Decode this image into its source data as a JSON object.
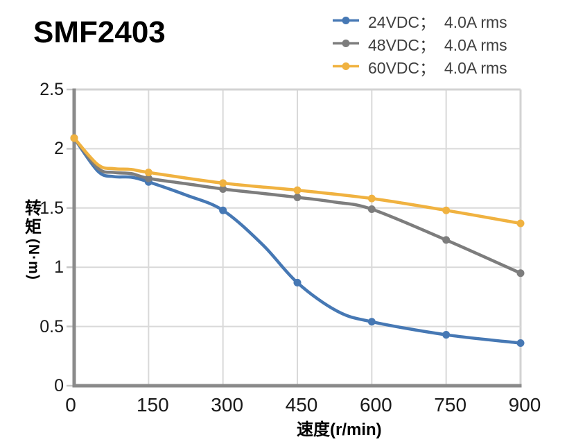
{
  "title": "SMF2403",
  "legend": {
    "position": "top-right",
    "items": [
      {
        "label": "24VDC；  4.0A rms",
        "color": "#4678B4"
      },
      {
        "label": "48VDC；  4.0A rms",
        "color": "#7D7D7D"
      },
      {
        "label": "60VDC；  4.0A rms",
        "color": "#F0B240"
      }
    ]
  },
  "axes": {
    "xlabel": "速度(r/min)",
    "ylabel": "转矩(N·m)",
    "ylabel_chars": [
      "转",
      "矩"
    ],
    "ylabel_unit": "(N·m)"
  },
  "chart_data": {
    "type": "line",
    "title": "SMF2403",
    "xlabel": "速度(r/min)",
    "ylabel": "转矩(N·m)",
    "xlim": [
      0,
      900
    ],
    "ylim": [
      0,
      2.5
    ],
    "xticks": [
      0,
      150,
      300,
      450,
      600,
      750,
      900
    ],
    "yticks": [
      0,
      0.5,
      1,
      1.5,
      2,
      2.5
    ],
    "grid": true,
    "legend_position": "top-right",
    "x": [
      0,
      150,
      300,
      450,
      600,
      750,
      900
    ],
    "series": [
      {
        "name": "24VDC；  4.0A rms",
        "id": "24vdc",
        "color": "#4678B4",
        "values": [
          2.09,
          1.72,
          1.48,
          0.87,
          0.54,
          0.43,
          0.36
        ],
        "shape_points": [
          [
            0,
            2.09
          ],
          [
            48,
            1.81
          ],
          [
            80,
            1.765
          ],
          [
            115,
            1.76
          ],
          [
            150,
            1.72
          ],
          [
            225,
            1.61
          ],
          [
            300,
            1.48
          ],
          [
            380,
            1.19
          ],
          [
            450,
            0.87
          ],
          [
            530,
            0.63
          ],
          [
            600,
            0.54
          ],
          [
            750,
            0.43
          ],
          [
            900,
            0.36
          ]
        ]
      },
      {
        "name": "48VDC；  4.0A rms",
        "id": "48vdc",
        "color": "#7D7D7D",
        "values": [
          2.09,
          1.75,
          1.66,
          1.59,
          1.49,
          1.23,
          0.95
        ],
        "shape_points": [
          [
            0,
            2.09
          ],
          [
            48,
            1.835
          ],
          [
            80,
            1.8
          ],
          [
            115,
            1.79
          ],
          [
            150,
            1.75
          ],
          [
            225,
            1.705
          ],
          [
            300,
            1.66
          ],
          [
            375,
            1.625
          ],
          [
            450,
            1.59
          ],
          [
            525,
            1.55
          ],
          [
            600,
            1.49
          ],
          [
            750,
            1.23
          ],
          [
            900,
            0.95
          ]
        ]
      },
      {
        "name": "60VDC；  4.0A rms",
        "id": "60vdc",
        "color": "#F0B240",
        "values": [
          2.09,
          1.8,
          1.71,
          1.65,
          1.58,
          1.48,
          1.37
        ],
        "shape_points": [
          [
            0,
            2.09
          ],
          [
            48,
            1.865
          ],
          [
            80,
            1.832
          ],
          [
            115,
            1.825
          ],
          [
            150,
            1.8
          ],
          [
            300,
            1.71
          ],
          [
            450,
            1.65
          ],
          [
            600,
            1.58
          ],
          [
            750,
            1.48
          ],
          [
            900,
            1.37
          ]
        ]
      }
    ],
    "colors": {
      "gridline": "#D9D9D9",
      "plot_border": "#D3D3D3",
      "axis_line": "#8A8A8A",
      "tick_mark": "#C6C6C6"
    }
  }
}
